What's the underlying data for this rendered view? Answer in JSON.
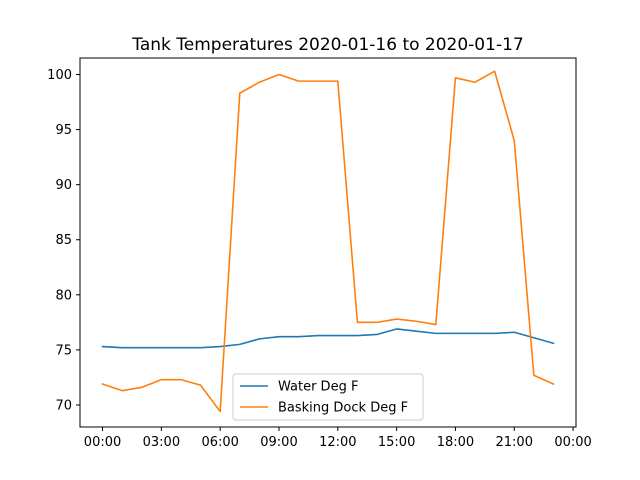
{
  "chart_data": {
    "type": "line",
    "title": "Tank Temperatures 2020-01-16 to 2020-01-17",
    "xlabel": "",
    "ylabel": "",
    "x": [
      "00:00",
      "01:00",
      "02:00",
      "03:00",
      "04:00",
      "05:00",
      "06:00",
      "07:00",
      "08:00",
      "09:00",
      "10:00",
      "11:00",
      "12:00",
      "13:00",
      "14:00",
      "15:00",
      "16:00",
      "17:00",
      "18:00",
      "19:00",
      "20:00",
      "21:00",
      "22:00",
      "23:00"
    ],
    "xticks": [
      "00:00",
      "03:00",
      "06:00",
      "09:00",
      "12:00",
      "15:00",
      "18:00",
      "21:00",
      "00:00"
    ],
    "yticks": [
      70,
      75,
      80,
      85,
      90,
      95,
      100
    ],
    "ylim": [
      68.0,
      101.5
    ],
    "xlim_hours": [
      -1.15,
      24.15
    ],
    "legend_position": "lower-center",
    "grid": false,
    "series": [
      {
        "name": "Water Deg F",
        "color": "#1f77b4",
        "values": [
          75.3,
          75.2,
          75.2,
          75.2,
          75.2,
          75.2,
          75.3,
          75.5,
          76.0,
          76.2,
          76.2,
          76.3,
          76.3,
          76.3,
          76.4,
          76.9,
          76.7,
          76.5,
          76.5,
          76.5,
          76.5,
          76.6,
          76.1,
          75.6
        ]
      },
      {
        "name": "Basking Dock Deg F",
        "color": "#ff7f0e",
        "values": [
          71.9,
          71.3,
          71.6,
          72.3,
          72.3,
          71.8,
          69.4,
          98.3,
          99.3,
          100.0,
          99.4,
          99.4,
          99.4,
          77.5,
          77.5,
          77.8,
          77.6,
          77.3,
          99.7,
          99.3,
          100.3,
          94.0,
          72.7,
          71.9
        ]
      }
    ]
  }
}
